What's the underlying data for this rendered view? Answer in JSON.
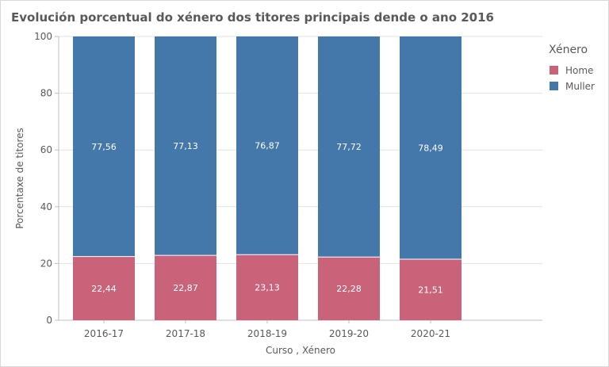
{
  "chart_data": {
    "type": "bar",
    "stacked": true,
    "title": "Evolución porcentual do xénero dos titores principais dende o ano 2016",
    "xlabel": "Curso , Xénero",
    "ylabel": "Porcentaxe de titores",
    "ylim": [
      0,
      100
    ],
    "yticks": [
      0,
      20,
      40,
      60,
      80,
      100
    ],
    "grid": true,
    "legend_title": "Xénero",
    "legend_position": "right",
    "categories": [
      "2016-17",
      "2017-18",
      "2018-19",
      "2019-20",
      "2020-21"
    ],
    "series": [
      {
        "name": "Home",
        "color": "#c8637a",
        "values": [
          22.44,
          22.87,
          23.13,
          22.28,
          21.51
        ],
        "labels": [
          "22,44",
          "22,87",
          "23,13",
          "22,28",
          "21,51"
        ]
      },
      {
        "name": "Muller",
        "color": "#4477aa",
        "values": [
          77.56,
          77.13,
          76.87,
          77.72,
          78.49
        ],
        "labels": [
          "77,56",
          "77,13",
          "76,87",
          "77,72",
          "78,49"
        ]
      }
    ]
  }
}
